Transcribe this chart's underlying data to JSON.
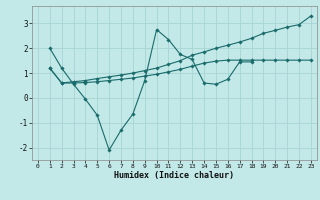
{
  "xlabel": "Humidex (Indice chaleur)",
  "bg_color": "#c2e8e8",
  "grid_color": "#a8d4d4",
  "line_color": "#1a6b6b",
  "xlim": [
    -0.5,
    23.5
  ],
  "ylim": [
    -2.5,
    3.7
  ],
  "yticks": [
    -2,
    -1,
    0,
    1,
    2,
    3
  ],
  "xticks": [
    0,
    1,
    2,
    3,
    4,
    5,
    6,
    7,
    8,
    9,
    10,
    11,
    12,
    13,
    14,
    15,
    16,
    17,
    18,
    19,
    20,
    21,
    22,
    23
  ],
  "line1_x": [
    1,
    2,
    3,
    4,
    5,
    6,
    7,
    8,
    9,
    10,
    11,
    12,
    13,
    14,
    15,
    16,
    17,
    18
  ],
  "line1_y": [
    2.0,
    1.2,
    0.55,
    -0.05,
    -0.7,
    -2.1,
    -1.3,
    -0.65,
    0.7,
    2.75,
    2.35,
    1.75,
    1.55,
    0.6,
    0.55,
    0.75,
    1.45,
    1.45
  ],
  "line2_x": [
    1,
    2,
    3,
    4,
    5,
    6,
    7,
    8,
    9,
    10,
    11,
    12,
    13,
    14,
    15,
    16,
    17,
    18,
    19,
    20,
    21,
    22,
    23
  ],
  "line2_y": [
    1.2,
    0.6,
    0.65,
    0.7,
    0.78,
    0.85,
    0.92,
    1.0,
    1.1,
    1.2,
    1.35,
    1.5,
    1.72,
    1.85,
    2.0,
    2.12,
    2.25,
    2.4,
    2.6,
    2.72,
    2.85,
    2.95,
    3.3
  ],
  "line3_x": [
    1,
    2,
    3,
    4,
    5,
    6,
    7,
    8,
    9,
    10,
    11,
    12,
    13,
    14,
    15,
    16,
    17,
    18,
    19,
    20,
    21,
    22,
    23
  ],
  "line3_y": [
    1.2,
    0.6,
    0.6,
    0.62,
    0.65,
    0.7,
    0.75,
    0.8,
    0.88,
    0.95,
    1.05,
    1.15,
    1.28,
    1.4,
    1.48,
    1.52,
    1.52,
    1.52,
    1.52,
    1.52,
    1.52,
    1.52,
    1.52
  ]
}
